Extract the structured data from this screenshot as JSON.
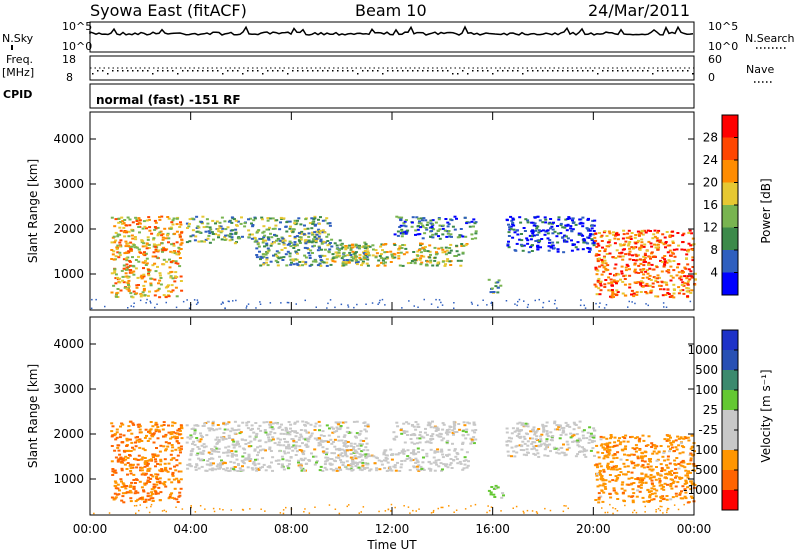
{
  "header": {
    "title": "Syowa East (fitACF)",
    "beam": "Beam 10",
    "date": "24/Mar/2011"
  },
  "strips": {
    "nsky_label": "N.Sky",
    "nsearch_label": "N.Search",
    "nsky_ticks": [
      "10^5",
      "10^0"
    ],
    "nsearch_ticks": [
      "10^5",
      "10^0"
    ],
    "freq_label": "Freq.",
    "freq_unit": "[MHz]",
    "freq_ticks": [
      "18",
      "8"
    ],
    "nave_label": "Nave",
    "nave_ticks": [
      "60",
      "0"
    ],
    "cpid_label": "CPID",
    "cpid_text": "normal (fast) -151 RF"
  },
  "colors": {
    "power_scale": [
      "#0000ff",
      "#2f5fbf",
      "#3c8a4a",
      "#78b450",
      "#e6c832",
      "#ff8c00",
      "#ff4600",
      "#ff0000"
    ],
    "velocity_scale": [
      "#ff0000",
      "#ff6400",
      "#ff9600",
      "#c8c8c8",
      "#c8c8c8",
      "#64c832",
      "#3c8a6e",
      "#2850b4",
      "#1e32c8"
    ]
  },
  "chart_data": [
    {
      "type": "heatmap",
      "name": "power",
      "ylabel": "Slant Range [km]",
      "xlabel": "",
      "xlim": [
        "00:00",
        "24:00"
      ],
      "ylim": [
        200,
        4600
      ],
      "y_ticks": [
        "1000",
        "2000",
        "3000",
        "4000"
      ],
      "colorbar": {
        "label": "Power [dB]",
        "ticks": [
          "4",
          "8",
          "12",
          "16",
          "20",
          "24",
          "28"
        ]
      },
      "regions": [
        {
          "t0": 0.8,
          "t1": 3.6,
          "r0": 500,
          "r1": 2300,
          "level": 20
        },
        {
          "t0": 3.8,
          "t1": 9.5,
          "r0": 1700,
          "r1": 2300,
          "level": 12
        },
        {
          "t0": 6.5,
          "t1": 11.0,
          "r0": 1200,
          "r1": 1800,
          "level": 12
        },
        {
          "t0": 9.5,
          "t1": 15.0,
          "r0": 1200,
          "r1": 1700,
          "level": 16
        },
        {
          "t0": 12.0,
          "t1": 15.3,
          "r0": 1800,
          "r1": 2300,
          "level": 8
        },
        {
          "t0": 15.8,
          "t1": 16.4,
          "r0": 600,
          "r1": 900,
          "level": 12
        },
        {
          "t0": 16.5,
          "t1": 20.0,
          "r0": 1500,
          "r1": 2300,
          "level": 4
        },
        {
          "t0": 20.0,
          "t1": 24.0,
          "r0": 500,
          "r1": 2000,
          "level": 24
        }
      ]
    },
    {
      "type": "heatmap",
      "name": "velocity",
      "ylabel": "Slant Range [km]",
      "xlabel": "Time UT",
      "xlim": [
        "00:00",
        "24:00"
      ],
      "ylim": [
        200,
        4600
      ],
      "y_ticks": [
        "1000",
        "2000",
        "3000",
        "4000"
      ],
      "x_ticks": [
        "00:00",
        "04:00",
        "08:00",
        "12:00",
        "16:00",
        "20:00",
        "00:00"
      ],
      "colorbar": {
        "label": "Velocity [m s⁻¹]",
        "ticks": [
          "1000",
          "500",
          "100",
          "25",
          "-25",
          "-100",
          "-500",
          "-1000"
        ]
      },
      "regions": [
        {
          "t0": 0.8,
          "t1": 3.6,
          "r0": 500,
          "r1": 2300,
          "level": -300
        },
        {
          "t0": 3.8,
          "t1": 11.0,
          "r0": 1200,
          "r1": 2300,
          "level": 0
        },
        {
          "t0": 9.5,
          "t1": 15.0,
          "r0": 1200,
          "r1": 1700,
          "level": 0
        },
        {
          "t0": 12.0,
          "t1": 15.3,
          "r0": 1800,
          "r1": 2300,
          "level": 0
        },
        {
          "t0": 15.8,
          "t1": 16.4,
          "r0": 600,
          "r1": 900,
          "level": 100
        },
        {
          "t0": 16.5,
          "t1": 20.0,
          "r0": 1500,
          "r1": 2300,
          "level": 0
        },
        {
          "t0": 20.0,
          "t1": 24.0,
          "r0": 500,
          "r1": 2000,
          "level": -200
        }
      ]
    }
  ]
}
